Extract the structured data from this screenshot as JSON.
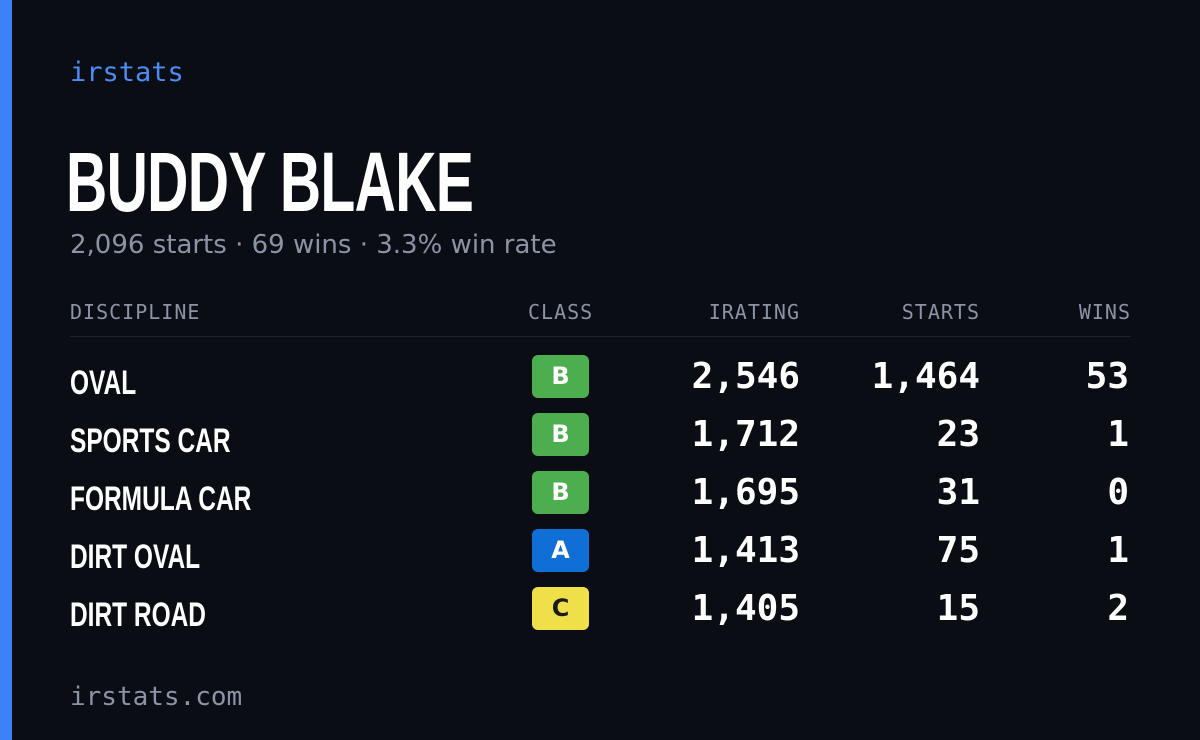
{
  "brand": "irstats",
  "driver": {
    "name": "BUDDY BLAKE",
    "summary": "2,096 starts · 69 wins · 3.3% win rate"
  },
  "table": {
    "headers": {
      "discipline": "DISCIPLINE",
      "class": "CLASS",
      "irating": "IRATING",
      "starts": "STARTS",
      "wins": "WINS"
    },
    "rows": [
      {
        "discipline": "OVAL",
        "class": "B",
        "irating": "2,546",
        "starts": "1,464",
        "wins": "53"
      },
      {
        "discipline": "SPORTS CAR",
        "class": "B",
        "irating": "1,712",
        "starts": "23",
        "wins": "1"
      },
      {
        "discipline": "FORMULA CAR",
        "class": "B",
        "irating": "1,695",
        "starts": "31",
        "wins": "0"
      },
      {
        "discipline": "DIRT OVAL",
        "class": "A",
        "irating": "1,413",
        "starts": "75",
        "wins": "1"
      },
      {
        "discipline": "DIRT ROAD",
        "class": "C",
        "irating": "1,405",
        "starts": "15",
        "wins": "2"
      }
    ]
  },
  "class_colors": {
    "A": {
      "bg": "#0f6fd6",
      "fg": "#ffffff"
    },
    "B": {
      "bg": "#4cae4f",
      "fg": "#ffffff"
    },
    "C": {
      "bg": "#efe04a",
      "fg": "#1b1b1b"
    }
  },
  "colors": {
    "accent": "#3b82f6",
    "background": "#0a0d14"
  },
  "footer": "irstats.com"
}
